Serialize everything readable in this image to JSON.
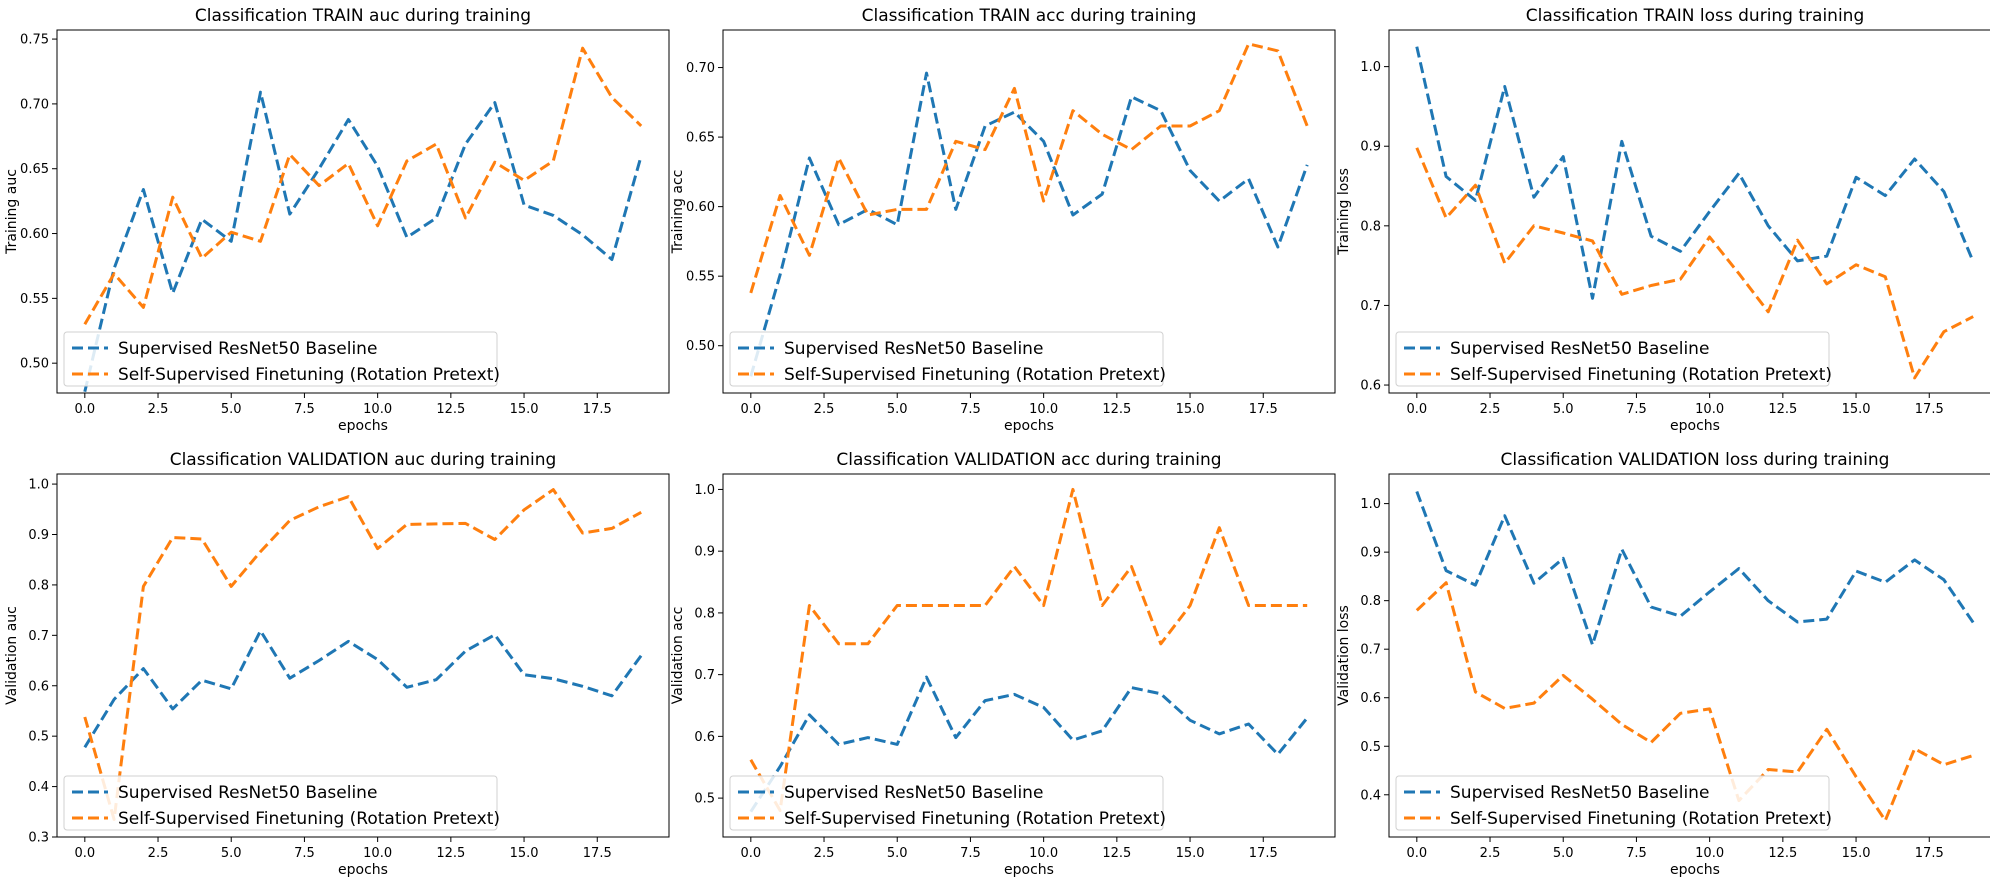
{
  "colors": {
    "baseline": "#1f77b4",
    "selfsup": "#ff7f0e"
  },
  "chart_data": [
    {
      "type": "line",
      "title": "Classification TRAIN auc during training",
      "xlabel": "epochs",
      "ylabel": "Training auc",
      "xlim": [
        -0.95,
        19.95
      ],
      "ylim": [
        0.477,
        0.757
      ],
      "xticks": [
        "0.0",
        "2.5",
        "5.0",
        "7.5",
        "10.0",
        "12.5",
        "15.0",
        "17.5"
      ],
      "yticks": [
        "0.50",
        "0.55",
        "0.60",
        "0.65",
        "0.70",
        "0.75"
      ],
      "grid": false,
      "legend": "lower-left",
      "x": [
        0,
        1,
        2,
        3,
        4,
        5,
        6,
        7,
        8,
        9,
        10,
        11,
        12,
        13,
        14,
        15,
        16,
        17,
        18,
        19
      ],
      "series": [
        {
          "name": "Supervised ResNet50 Baseline",
          "color_key": "baseline",
          "values": [
            0.478,
            0.573,
            0.634,
            0.554,
            0.611,
            0.594,
            0.709,
            0.615,
            0.65,
            0.688,
            0.652,
            0.597,
            0.612,
            0.669,
            0.701,
            0.622,
            0.614,
            0.599,
            0.58,
            0.66
          ]
        },
        {
          "name": "Self-Supervised Finetuning (Rotation Pretext)",
          "color_key": "selfsup",
          "values": [
            0.53,
            0.569,
            0.543,
            0.628,
            0.581,
            0.601,
            0.594,
            0.661,
            0.637,
            0.654,
            0.606,
            0.656,
            0.669,
            0.612,
            0.655,
            0.641,
            0.656,
            0.743,
            0.705,
            0.683
          ]
        }
      ]
    },
    {
      "type": "line",
      "title": "Classification TRAIN acc during training",
      "xlabel": "epochs",
      "ylabel": "Training acc",
      "xlim": [
        -0.95,
        19.95
      ],
      "ylim": [
        0.466,
        0.727
      ],
      "xticks": [
        "0.0",
        "2.5",
        "5.0",
        "7.5",
        "10.0",
        "12.5",
        "15.0",
        "17.5"
      ],
      "yticks": [
        "0.50",
        "0.55",
        "0.60",
        "0.65",
        "0.70"
      ],
      "grid": false,
      "legend": "lower-left",
      "x": [
        0,
        1,
        2,
        3,
        4,
        5,
        6,
        7,
        8,
        9,
        10,
        11,
        12,
        13,
        14,
        15,
        16,
        17,
        18,
        19
      ],
      "series": [
        {
          "name": "Supervised ResNet50 Baseline",
          "color_key": "baseline",
          "values": [
            0.478,
            0.551,
            0.635,
            0.587,
            0.598,
            0.587,
            0.696,
            0.598,
            0.658,
            0.668,
            0.647,
            0.594,
            0.609,
            0.679,
            0.669,
            0.626,
            0.604,
            0.62,
            0.571,
            0.63
          ]
        },
        {
          "name": "Self-Supervised Finetuning (Rotation Pretext)",
          "color_key": "selfsup",
          "values": [
            0.538,
            0.608,
            0.565,
            0.635,
            0.594,
            0.598,
            0.598,
            0.647,
            0.641,
            0.685,
            0.604,
            0.669,
            0.652,
            0.641,
            0.658,
            0.658,
            0.669,
            0.717,
            0.712,
            0.658
          ]
        }
      ]
    },
    {
      "type": "line",
      "title": "Classification TRAIN loss during training",
      "xlabel": "epochs",
      "ylabel": "Training loss",
      "xlim": [
        -0.95,
        19.95
      ],
      "ylim": [
        0.59,
        1.046
      ],
      "xticks": [
        "0.0",
        "2.5",
        "5.0",
        "7.5",
        "10.0",
        "12.5",
        "15.0",
        "17.5"
      ],
      "yticks": [
        "0.6",
        "0.7",
        "0.8",
        "0.9",
        "1.0"
      ],
      "grid": false,
      "legend": "lower-left",
      "x": [
        0,
        1,
        2,
        3,
        4,
        5,
        6,
        7,
        8,
        9,
        10,
        11,
        12,
        13,
        14,
        15,
        16,
        17,
        18,
        19
      ],
      "series": [
        {
          "name": "Supervised ResNet50 Baseline",
          "color_key": "baseline",
          "values": [
            1.025,
            0.862,
            0.832,
            0.975,
            0.836,
            0.887,
            0.709,
            0.906,
            0.787,
            0.768,
            0.818,
            0.866,
            0.8,
            0.756,
            0.762,
            0.861,
            0.838,
            0.884,
            0.843,
            0.755
          ]
        },
        {
          "name": "Self-Supervised Finetuning (Rotation Pretext)",
          "color_key": "selfsup",
          "values": [
            0.898,
            0.81,
            0.851,
            0.753,
            0.8,
            0.791,
            0.781,
            0.714,
            0.725,
            0.733,
            0.786,
            0.74,
            0.692,
            0.782,
            0.727,
            0.751,
            0.736,
            0.609,
            0.667,
            0.686
          ]
        }
      ]
    },
    {
      "type": "line",
      "title": "Classification VALIDATION auc during training",
      "xlabel": "epochs",
      "ylabel": "Validation auc",
      "xlim": [
        -0.95,
        19.95
      ],
      "ylim": [
        0.3,
        1.02
      ],
      "xticks": [
        "0.0",
        "2.5",
        "5.0",
        "7.5",
        "10.0",
        "12.5",
        "15.0",
        "17.5"
      ],
      "yticks": [
        "0.3",
        "0.4",
        "0.5",
        "0.6",
        "0.7",
        "0.8",
        "0.9",
        "1.0"
      ],
      "grid": false,
      "legend": "lower-left",
      "x": [
        0,
        1,
        2,
        3,
        4,
        5,
        6,
        7,
        8,
        9,
        10,
        11,
        12,
        13,
        14,
        15,
        16,
        17,
        18,
        19
      ],
      "series": [
        {
          "name": "Supervised ResNet50 Baseline",
          "color_key": "baseline",
          "values": [
            0.478,
            0.573,
            0.634,
            0.554,
            0.611,
            0.594,
            0.709,
            0.615,
            0.65,
            0.688,
            0.652,
            0.597,
            0.612,
            0.669,
            0.701,
            0.622,
            0.614,
            0.599,
            0.58,
            0.66
          ]
        },
        {
          "name": "Self-Supervised Finetuning (Rotation Pretext)",
          "color_key": "selfsup",
          "values": [
            0.538,
            0.335,
            0.797,
            0.894,
            0.891,
            0.797,
            0.866,
            0.928,
            0.955,
            0.975,
            0.872,
            0.92,
            0.921,
            0.922,
            0.89,
            0.949,
            0.989,
            0.903,
            0.912,
            0.944
          ]
        }
      ]
    },
    {
      "type": "line",
      "title": "Classification VALIDATION acc during training",
      "xlabel": "epochs",
      "ylabel": "Validation acc",
      "xlim": [
        -0.95,
        19.95
      ],
      "ylim": [
        0.437,
        1.025
      ],
      "xticks": [
        "0.0",
        "2.5",
        "5.0",
        "7.5",
        "10.0",
        "12.5",
        "15.0",
        "17.5"
      ],
      "yticks": [
        "0.5",
        "0.6",
        "0.7",
        "0.8",
        "0.9",
        "1.0"
      ],
      "grid": false,
      "legend": "lower-left",
      "x": [
        0,
        1,
        2,
        3,
        4,
        5,
        6,
        7,
        8,
        9,
        10,
        11,
        12,
        13,
        14,
        15,
        16,
        17,
        18,
        19
      ],
      "series": [
        {
          "name": "Supervised ResNet50 Baseline",
          "color_key": "baseline",
          "values": [
            0.478,
            0.551,
            0.635,
            0.587,
            0.598,
            0.587,
            0.696,
            0.598,
            0.658,
            0.668,
            0.647,
            0.594,
            0.609,
            0.679,
            0.669,
            0.626,
            0.604,
            0.62,
            0.571,
            0.63
          ]
        },
        {
          "name": "Self-Supervised Finetuning (Rotation Pretext)",
          "color_key": "selfsup",
          "values": [
            0.562,
            0.48,
            0.812,
            0.75,
            0.75,
            0.812,
            0.812,
            0.812,
            0.812,
            0.875,
            0.812,
            1.0,
            0.812,
            0.875,
            0.75,
            0.812,
            0.938,
            0.812,
            0.812,
            0.812
          ]
        }
      ]
    },
    {
      "type": "line",
      "title": "Classification VALIDATION loss during training",
      "xlabel": "epochs",
      "ylabel": "Validation loss",
      "xlim": [
        -0.95,
        19.95
      ],
      "ylim": [
        0.313,
        1.061
      ],
      "xticks": [
        "0.0",
        "2.5",
        "5.0",
        "7.5",
        "10.0",
        "12.5",
        "15.0",
        "17.5"
      ],
      "yticks": [
        "0.4",
        "0.5",
        "0.6",
        "0.7",
        "0.8",
        "0.9",
        "1.0"
      ],
      "grid": false,
      "legend": "lower-left",
      "x": [
        0,
        1,
        2,
        3,
        4,
        5,
        6,
        7,
        8,
        9,
        10,
        11,
        12,
        13,
        14,
        15,
        16,
        17,
        18,
        19
      ],
      "series": [
        {
          "name": "Supervised ResNet50 Baseline",
          "color_key": "baseline",
          "values": [
            1.025,
            0.862,
            0.832,
            0.975,
            0.836,
            0.887,
            0.709,
            0.906,
            0.787,
            0.768,
            0.818,
            0.866,
            0.8,
            0.756,
            0.762,
            0.861,
            0.838,
            0.884,
            0.843,
            0.755
          ]
        },
        {
          "name": "Self-Supervised Finetuning (Rotation Pretext)",
          "color_key": "selfsup",
          "values": [
            0.78,
            0.837,
            0.612,
            0.578,
            0.589,
            0.646,
            0.597,
            0.545,
            0.508,
            0.568,
            0.577,
            0.388,
            0.452,
            0.447,
            0.535,
            0.437,
            0.347,
            0.495,
            0.462,
            0.481
          ]
        }
      ]
    }
  ]
}
